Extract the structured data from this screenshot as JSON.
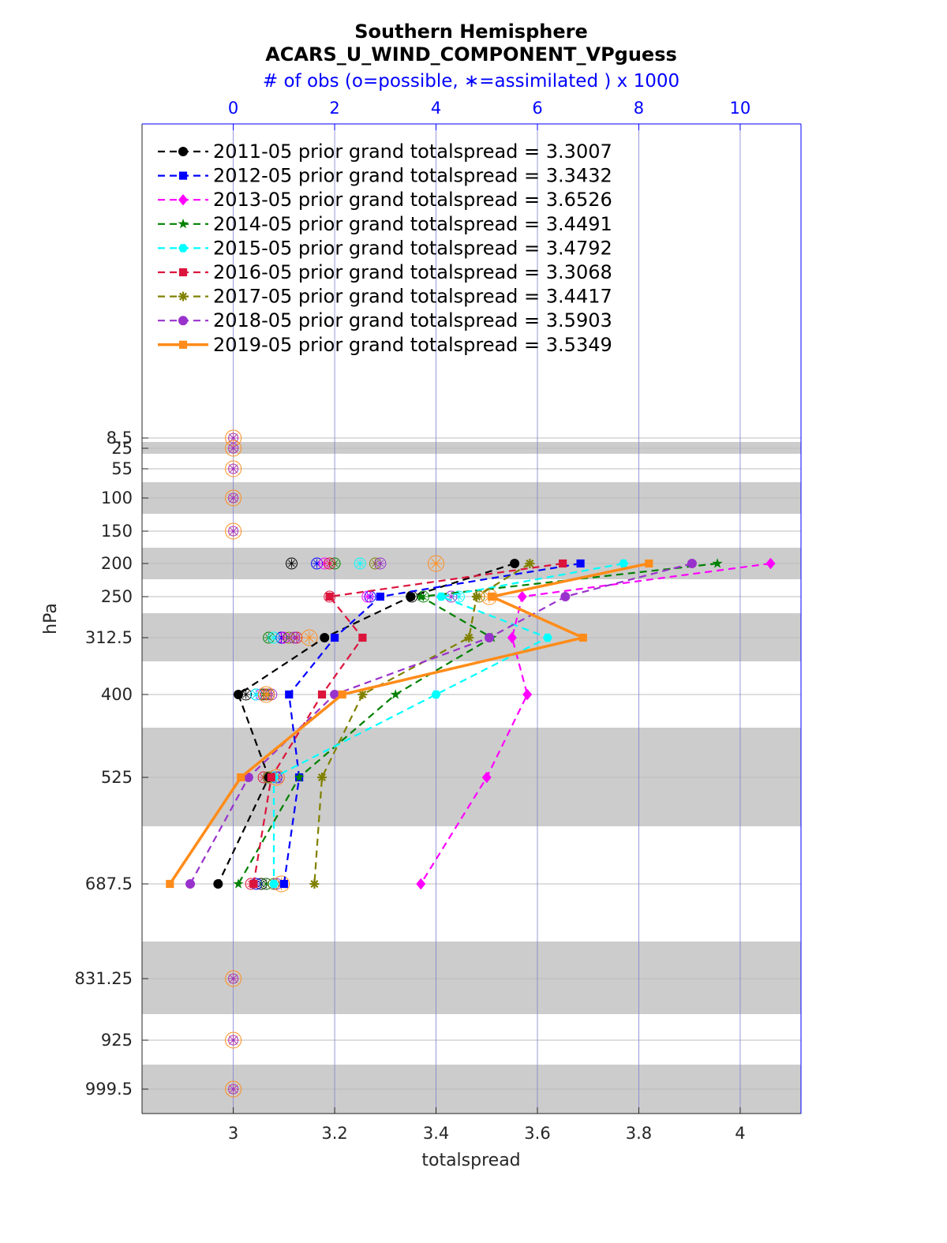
{
  "chart_data": {
    "type": "line",
    "title": "Southern Hemisphere",
    "subtitle": "ACARS_U_WIND_COMPONENT_VPguess",
    "top_axis_label": "# of obs (o=possible, ∗=assimilated ) x 1000",
    "xlabel": "totalspread",
    "ylabel": "hPa",
    "xlim": [
      2.82,
      4.12
    ],
    "top_xlim": [
      -1.8,
      11.2
    ],
    "x_ticks": [
      "3",
      "3.2",
      "3.4",
      "3.6",
      "3.8",
      "4"
    ],
    "x_tick_values": [
      3,
      3.2,
      3.4,
      3.6,
      3.8,
      4
    ],
    "top_ticks": [
      "0",
      "2",
      "4",
      "6",
      "8",
      "10"
    ],
    "top_tick_values": [
      0,
      2,
      4,
      6,
      8,
      10
    ],
    "y_ticks": [
      "8.5",
      "25",
      "55",
      "100",
      "150",
      "200",
      "250",
      "312.5",
      "400",
      "525",
      "687.5",
      "831.25",
      "925",
      "999.5"
    ],
    "y_tick_values": [
      8.5,
      25,
      55,
      100,
      150,
      200,
      250,
      312.5,
      400,
      525,
      687.5,
      831.25,
      925,
      999.5
    ],
    "grid": true,
    "legend_position": "top-left",
    "levels": [
      200,
      250,
      312.5,
      400,
      525,
      687.5
    ],
    "series": [
      {
        "name": "2011-05 prior grand totalspread = 3.3007",
        "color": "#000000",
        "marker": "circle",
        "linestyle": "dashed",
        "values": [
          3.555,
          3.35,
          3.18,
          3.01,
          3.07,
          2.97
        ],
        "obs_possible": [
          1.15,
          3.52,
          0.95,
          0.25,
          0.7,
          0.55
        ],
        "obs_assimilated": [
          1.15,
          3.52,
          0.95,
          0.25,
          0.7,
          0.55
        ]
      },
      {
        "name": "2012-05 prior grand totalspread = 3.3432",
        "color": "#0000ff",
        "marker": "square",
        "linestyle": "dashed",
        "values": [
          3.685,
          3.29,
          3.2,
          3.11,
          3.13,
          3.1
        ],
        "obs_possible": [
          1.65,
          2.7,
          0.95,
          0.45,
          0.85,
          0.45
        ],
        "obs_assimilated": [
          1.65,
          2.7,
          0.95,
          0.45,
          0.85,
          0.45
        ]
      },
      {
        "name": "2013-05 prior grand totalspread = 3.6526",
        "color": "#ff00ff",
        "marker": "diamond",
        "linestyle": "dashed",
        "values": [
          4.06,
          3.57,
          3.55,
          3.58,
          3.5,
          3.37
        ],
        "obs_possible": [
          1.8,
          2.65,
          1.0,
          0.55,
          0.8,
          0.65
        ],
        "obs_assimilated": [
          1.8,
          2.65,
          1.0,
          0.55,
          0.8,
          0.65
        ]
      },
      {
        "name": "2014-05 prior grand totalspread = 3.4491",
        "color": "#008000",
        "marker": "star",
        "linestyle": "dashed",
        "values": [
          3.955,
          3.37,
          3.51,
          3.32,
          3.13,
          3.01
        ],
        "obs_possible": [
          2.0,
          3.75,
          0.7,
          0.6,
          0.7,
          0.65
        ],
        "obs_assimilated": [
          2.0,
          3.75,
          0.7,
          0.6,
          0.7,
          0.65
        ]
      },
      {
        "name": "2015-05 prior grand totalspread = 3.4792",
        "color": "#00ffff",
        "marker": "hexagon",
        "linestyle": "dashed",
        "values": [
          3.77,
          3.41,
          3.62,
          3.4,
          3.08,
          3.08
        ],
        "obs_possible": [
          2.5,
          4.45,
          0.8,
          0.45,
          0.8,
          0.8
        ],
        "obs_assimilated": [
          2.5,
          4.45,
          0.8,
          0.45,
          0.8,
          0.8
        ]
      },
      {
        "name": "2016-05 prior grand totalspread = 3.3068",
        "color": "#dc143c",
        "marker": "square",
        "linestyle": "dashed",
        "values": [
          3.65,
          3.19,
          3.255,
          3.175,
          3.075,
          3.04
        ],
        "obs_possible": [
          1.9,
          1.9,
          1.25,
          0.65,
          0.6,
          0.35
        ],
        "obs_assimilated": [
          1.9,
          1.9,
          1.25,
          0.65,
          0.6,
          0.35
        ]
      },
      {
        "name": "2017-05 prior grand totalspread = 3.4417",
        "color": "#808000",
        "marker": "asterisk",
        "linestyle": "dashed",
        "values": [
          3.585,
          3.48,
          3.465,
          3.255,
          3.175,
          3.16
        ],
        "obs_possible": [
          2.8,
          4.85,
          1.1,
          0.7,
          0.7,
          0.8
        ],
        "obs_assimilated": [
          2.8,
          4.85,
          1.1,
          0.7,
          0.7,
          0.8
        ]
      },
      {
        "name": "2018-05 prior grand totalspread = 3.5903",
        "color": "#9932cc",
        "marker": "circle",
        "linestyle": "dashed",
        "values": [
          3.905,
          3.655,
          3.505,
          3.2,
          3.03,
          2.915
        ],
        "obs_possible": [
          2.9,
          4.3,
          1.2,
          0.75,
          0.9,
          0.85
        ],
        "obs_assimilated": [
          2.9,
          4.3,
          1.2,
          0.75,
          0.9,
          0.85
        ]
      },
      {
        "name": "2019-05 prior grand totalspread = 3.5349",
        "color": "#ff8c1a",
        "marker": "square",
        "linestyle": "solid",
        "values": [
          3.82,
          3.51,
          3.69,
          3.215,
          3.015,
          2.875
        ],
        "obs_possible": [
          4.0,
          5.05,
          1.5,
          0.65,
          0.85,
          0.95
        ],
        "obs_assimilated": [
          4.0,
          5.05,
          1.5,
          0.65,
          0.85,
          0.95
        ]
      }
    ],
    "empty_levels": [
      8.5,
      25,
      55,
      100,
      150,
      831.25,
      925,
      999.5
    ]
  }
}
